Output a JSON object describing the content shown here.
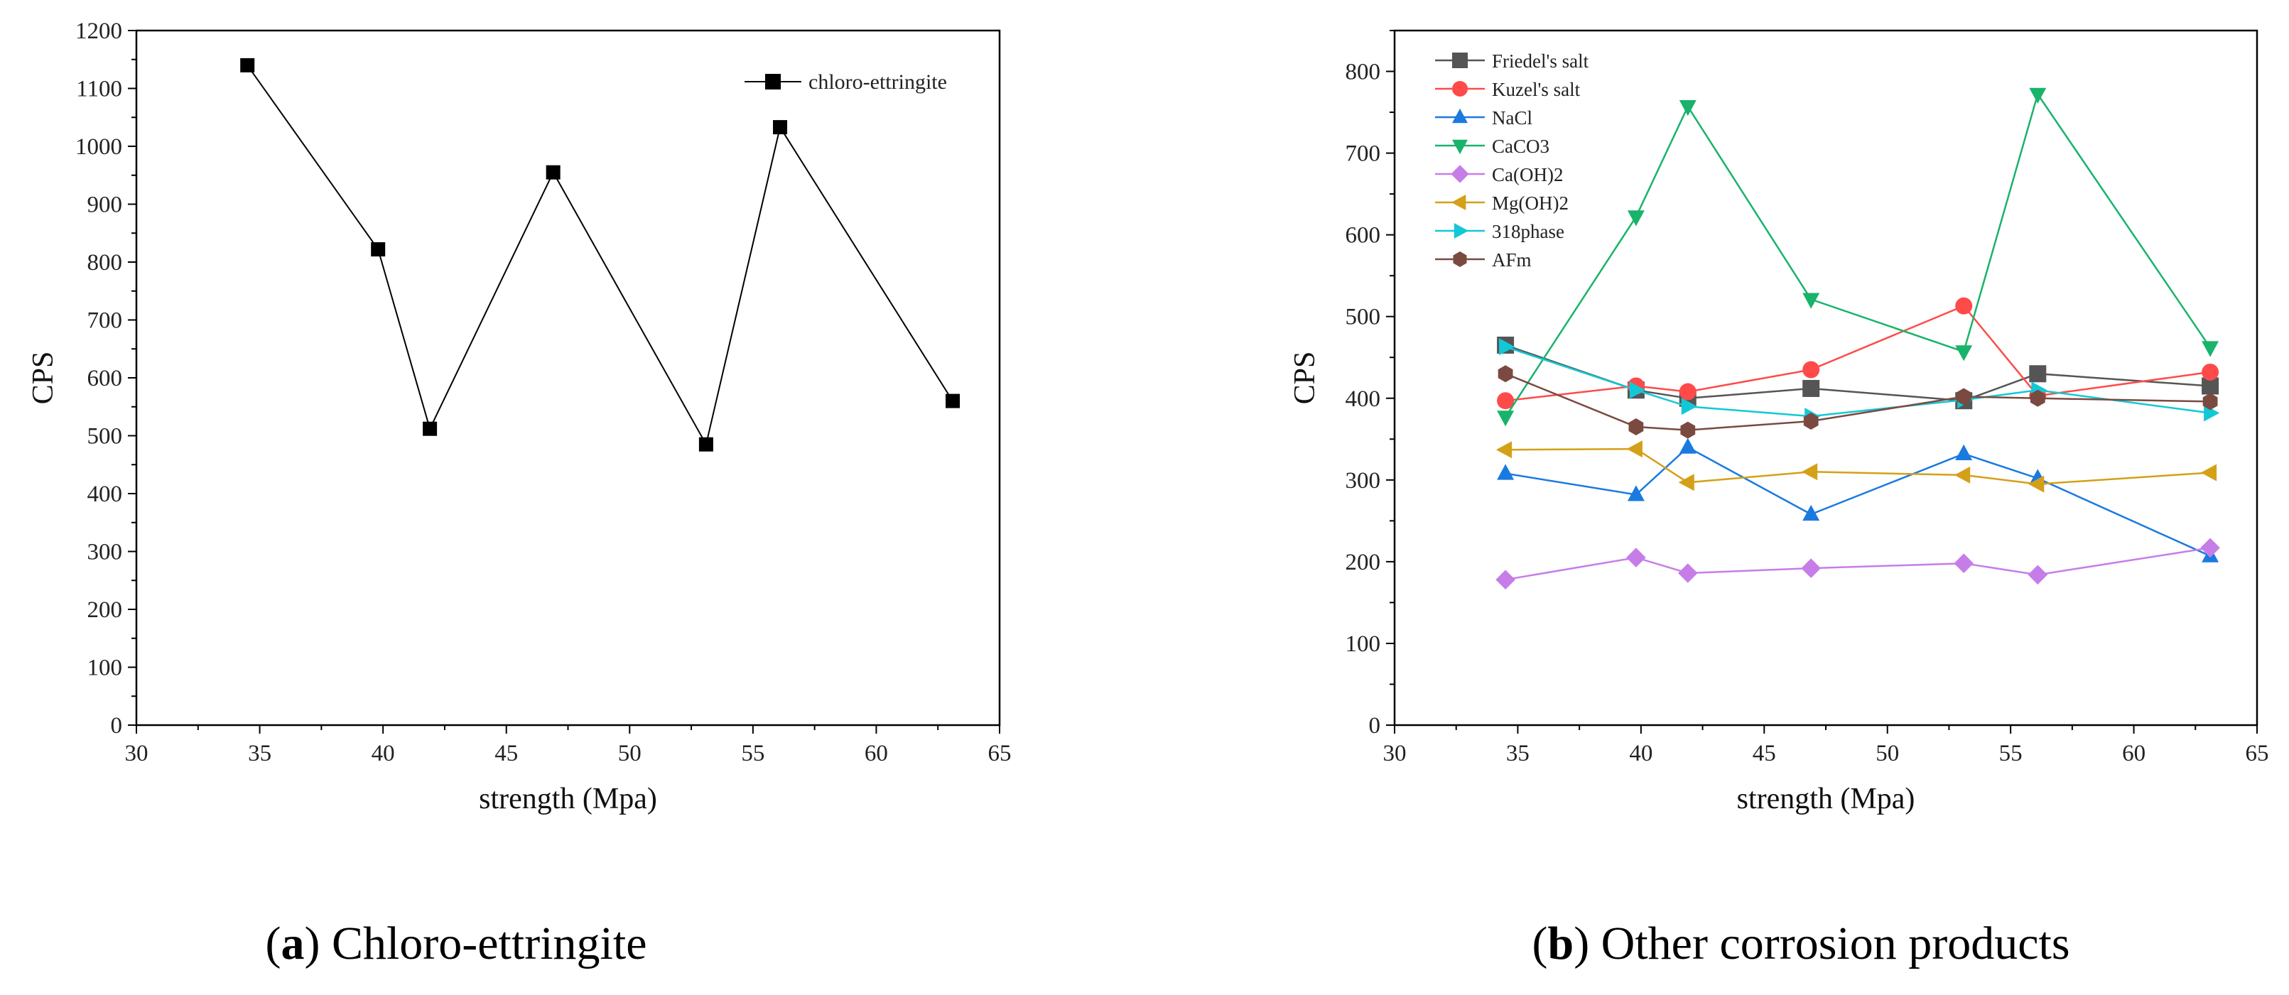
{
  "chart_data": [
    {
      "type": "line",
      "id": "a",
      "caption": {
        "open": "(",
        "letter": "a",
        "close": ")",
        "text": " Chloro-ettringite"
      },
      "xlabel": "strength (Mpa)",
      "ylabel": "CPS",
      "xlim": [
        30,
        65
      ],
      "ylim": [
        0,
        1200
      ],
      "xticks": [
        30,
        35,
        40,
        45,
        50,
        55,
        60,
        65
      ],
      "yticks": [
        0,
        100,
        200,
        300,
        400,
        500,
        600,
        700,
        800,
        900,
        1000,
        1100,
        1200
      ],
      "legend_position": "top-right",
      "series": [
        {
          "name": "chloro-ettringite",
          "color": "#000000",
          "marker": "square",
          "x": [
            34.5,
            39.8,
            41.9,
            46.9,
            53.1,
            56.1,
            63.1
          ],
          "y": [
            1140,
            822,
            512,
            955,
            485,
            1033,
            560
          ]
        }
      ]
    },
    {
      "type": "line",
      "id": "b",
      "caption": {
        "open": "(",
        "letter": "b",
        "close": ")",
        "text": " Other corrosion products"
      },
      "xlabel": "strength (Mpa)",
      "ylabel": "CPS",
      "xlim": [
        30,
        65
      ],
      "ylim": [
        0,
        850
      ],
      "xticks": [
        30,
        35,
        40,
        45,
        50,
        55,
        60,
        65
      ],
      "yticks": [
        0,
        100,
        200,
        300,
        400,
        500,
        600,
        700,
        800
      ],
      "legend_position": "top-left",
      "series": [
        {
          "name": "Friedel's salt",
          "color": "#555555",
          "marker": "square",
          "x": [
            34.5,
            39.8,
            41.9,
            46.9,
            53.1,
            56.1,
            63.1
          ],
          "y": [
            465,
            410,
            400,
            412,
            397,
            430,
            415
          ]
        },
        {
          "name": "Kuzel's salt",
          "color": "#ff4a4a",
          "marker": "circle",
          "x": [
            34.5,
            39.8,
            41.9,
            46.9,
            53.1,
            56.1,
            63.1
          ],
          "y": [
            397,
            415,
            408,
            435,
            513,
            403,
            432
          ]
        },
        {
          "name": "NaCl",
          "color": "#1a7ae0",
          "marker": "triangle-up",
          "x": [
            34.5,
            39.8,
            41.9,
            46.9,
            53.1,
            56.1,
            63.1
          ],
          "y": [
            308,
            282,
            340,
            258,
            332,
            302,
            207
          ]
        },
        {
          "name": "CaCO3",
          "color": "#19b36b",
          "marker": "triangle-down",
          "x": [
            34.5,
            39.8,
            41.9,
            46.9,
            53.1,
            56.1,
            63.1
          ],
          "y": [
            377,
            622,
            757,
            521,
            457,
            772,
            462
          ]
        },
        {
          "name": "Ca(OH)2",
          "color": "#c77de8",
          "marker": "diamond",
          "x": [
            34.5,
            39.8,
            41.9,
            46.9,
            53.1,
            56.1,
            63.1
          ],
          "y": [
            178,
            205,
            186,
            192,
            198,
            184,
            217
          ]
        },
        {
          "name": "Mg(OH)2",
          "color": "#d4a017",
          "marker": "triangle-left",
          "x": [
            34.5,
            39.8,
            41.9,
            46.9,
            53.1,
            56.1,
            63.1
          ],
          "y": [
            337,
            338,
            297,
            310,
            306,
            295,
            309
          ]
        },
        {
          "name": "318phase",
          "color": "#13c8d6",
          "marker": "triangle-right",
          "x": [
            34.5,
            39.8,
            41.9,
            46.9,
            53.1,
            56.1,
            63.1
          ],
          "y": [
            463,
            410,
            390,
            378,
            398,
            410,
            382
          ]
        },
        {
          "name": "AFm",
          "color": "#7a4a40",
          "marker": "hexagon",
          "x": [
            34.5,
            39.8,
            41.9,
            46.9,
            53.1,
            56.1,
            63.1
          ],
          "y": [
            430,
            365,
            361,
            372,
            402,
            400,
            396
          ]
        }
      ]
    }
  ]
}
